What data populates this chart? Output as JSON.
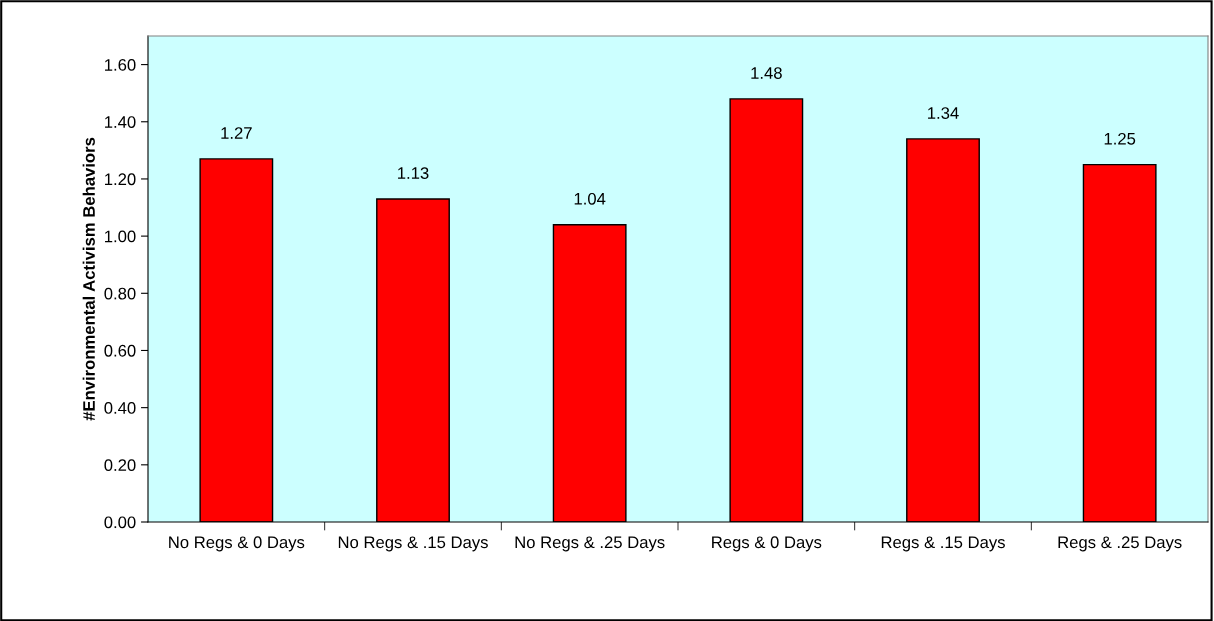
{
  "chart_data": {
    "type": "bar",
    "ylabel": "#Environmental Activism Behaviors",
    "categories": [
      "No Regs & 0 Days",
      "No Regs & .15 Days",
      "No Regs & .25 Days",
      "Regs & 0 Days",
      "Regs & .15 Days",
      "Regs & .25 Days"
    ],
    "values": [
      1.27,
      1.13,
      1.04,
      1.48,
      1.34,
      1.25
    ],
    "color": "#ff0000",
    "ylim": [
      0,
      1.7
    ],
    "yticks": [
      {
        "value": 0,
        "label": "0.00"
      },
      {
        "value": 0.2,
        "label": "0.20"
      },
      {
        "value": 0.4,
        "label": "0.40"
      },
      {
        "value": 0.6,
        "label": "0.60"
      },
      {
        "value": 0.8,
        "label": "0.80"
      },
      {
        "value": 1.0,
        "label": "1.00"
      },
      {
        "value": 1.2,
        "label": "1.20"
      },
      {
        "value": 1.4,
        "label": "1.40"
      },
      {
        "value": 1.6,
        "label": "1.60"
      }
    ],
    "data_labels": true,
    "grid": false,
    "legend": false
  }
}
